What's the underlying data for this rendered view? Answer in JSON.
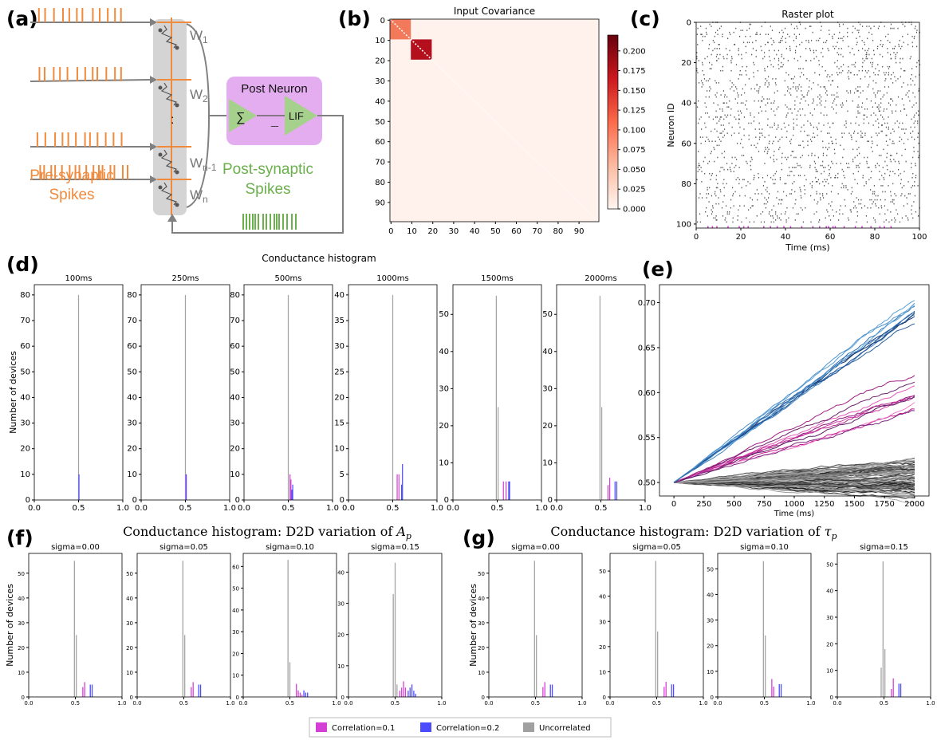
{
  "panel_labels": {
    "a": "(a)",
    "b": "(b)",
    "c": "(c)",
    "d": "(d)",
    "e": "(e)",
    "f": "(f)",
    "g": "(g)"
  },
  "schematic": {
    "weights": [
      "W",
      "W",
      "W",
      "W"
    ],
    "weight_subs": [
      "1",
      "2",
      "n-1",
      "n"
    ],
    "dots": ":",
    "post_neuron": "Post Neuron",
    "sum_symbol": "∑",
    "lif": "LIF",
    "minus": "_",
    "pre_label_1": "Pre-synaptic",
    "pre_label_2": "Spikes",
    "post_label_1": "Post-synaptic",
    "post_label_2": "Spikes",
    "colors": {
      "spike": "#f08a3c",
      "post": "#6ab04c",
      "neuron_box": "#e4adf0",
      "triangle": "#a6d18c",
      "gray_bar": "#d4d4d4"
    }
  },
  "chart_data": [
    {
      "id": "b",
      "type": "heatmap",
      "title": "Input Covariance",
      "x_ticks": [
        "0",
        "10",
        "20",
        "30",
        "40",
        "50",
        "60",
        "70",
        "80",
        "90"
      ],
      "y_ticks": [
        "0",
        "10",
        "20",
        "30",
        "40",
        "50",
        "60",
        "70",
        "80",
        "90"
      ],
      "n": 100,
      "blocks": [
        {
          "start": 0,
          "end": 10,
          "value": 0.1,
          "color": "#f2795a"
        },
        {
          "start": 10,
          "end": 20,
          "value": 0.2,
          "color": "#b30f1d"
        }
      ],
      "background_color": "#fff2ec",
      "colorbar_ticks": [
        "0.000",
        "0.025",
        "0.050",
        "0.075",
        "0.100",
        "0.125",
        "0.150",
        "0.175",
        "0.200"
      ],
      "colorbar_range": [
        0,
        0.22
      ]
    },
    {
      "id": "c",
      "type": "scatter",
      "title": "Raster plot",
      "xlabel": "Time (ms)",
      "ylabel": "Neuron ID",
      "x_ticks": [
        "0",
        "20",
        "40",
        "60",
        "80",
        "100"
      ],
      "y_ticks": [
        "0",
        "20",
        "40",
        "60",
        "80",
        "100"
      ],
      "xlim": [
        0,
        100
      ],
      "ylim": [
        102,
        0
      ],
      "n_neurons": 100,
      "rate": 0.16,
      "post_spike_times": [
        5,
        7,
        9,
        14,
        19,
        21,
        23,
        30,
        33,
        36,
        39,
        42,
        47,
        52,
        55,
        58,
        59,
        61,
        62,
        66,
        71,
        74,
        78,
        82,
        84,
        87
      ],
      "spike_color": "#555555",
      "post_color": "#d63fd6"
    },
    {
      "id": "d",
      "type": "bar",
      "title": "Conductance histogram",
      "ylabel": "Number of devices",
      "x_ticks": [
        "0.0",
        "0.5",
        "1.0"
      ],
      "subplots": [
        {
          "title": "100ms",
          "y_ticks": [
            "0",
            "10",
            "20",
            "30",
            "40",
            "50",
            "60",
            "70",
            "80"
          ],
          "ymax": 84,
          "bars": [
            {
              "x": 0.5,
              "v": 80,
              "c": "gray"
            },
            {
              "x": 0.505,
              "v": 10,
              "c": "blue"
            }
          ]
        },
        {
          "title": "250ms",
          "y_ticks": [
            "0",
            "10",
            "20",
            "30",
            "40",
            "50",
            "60",
            "70",
            "80"
          ],
          "ymax": 84,
          "bars": [
            {
              "x": 0.5,
              "v": 80,
              "c": "gray"
            },
            {
              "x": 0.505,
              "v": 10,
              "c": "magenta"
            },
            {
              "x": 0.51,
              "v": 10,
              "c": "blue"
            }
          ]
        },
        {
          "title": "500ms",
          "y_ticks": [
            "0",
            "10",
            "20",
            "30",
            "40",
            "50",
            "60",
            "70",
            "80"
          ],
          "ymax": 84,
          "bars": [
            {
              "x": 0.5,
              "v": 80,
              "c": "gray"
            },
            {
              "x": 0.52,
              "v": 10,
              "c": "magenta"
            },
            {
              "x": 0.53,
              "v": 8,
              "c": "magenta"
            },
            {
              "x": 0.54,
              "v": 4,
              "c": "blue"
            },
            {
              "x": 0.55,
              "v": 6,
              "c": "blue"
            }
          ]
        },
        {
          "title": "1000ms",
          "y_ticks": [
            "0",
            "5",
            "10",
            "15",
            "20",
            "25",
            "30",
            "35",
            "40"
          ],
          "ymax": 42,
          "bars": [
            {
              "x": 0.5,
              "v": 40,
              "c": "gray"
            },
            {
              "x": 0.55,
              "v": 5,
              "c": "magenta"
            },
            {
              "x": 0.57,
              "v": 5,
              "c": "magenta"
            },
            {
              "x": 0.6,
              "v": 3,
              "c": "blue"
            },
            {
              "x": 0.61,
              "v": 7,
              "c": "blue"
            }
          ]
        },
        {
          "title": "1500ms",
          "y_ticks": [
            "0",
            "10",
            "20",
            "30",
            "40",
            "50"
          ],
          "ymax": 58,
          "bars": [
            {
              "x": 0.49,
              "v": 55,
              "c": "gray"
            },
            {
              "x": 0.51,
              "v": 25,
              "c": "gray"
            },
            {
              "x": 0.57,
              "v": 5,
              "c": "magenta"
            },
            {
              "x": 0.6,
              "v": 5,
              "c": "magenta"
            },
            {
              "x": 0.63,
              "v": 5,
              "c": "blue"
            },
            {
              "x": 0.64,
              "v": 5,
              "c": "blue"
            }
          ]
        },
        {
          "title": "2000ms",
          "y_ticks": [
            "0",
            "10",
            "20",
            "30",
            "40",
            "50"
          ],
          "ymax": 58,
          "bars": [
            {
              "x": 0.49,
              "v": 55,
              "c": "gray"
            },
            {
              "x": 0.51,
              "v": 25,
              "c": "gray"
            },
            {
              "x": 0.58,
              "v": 4,
              "c": "magenta"
            },
            {
              "x": 0.6,
              "v": 6,
              "c": "magenta"
            },
            {
              "x": 0.66,
              "v": 5,
              "c": "blue"
            },
            {
              "x": 0.68,
              "v": 5,
              "c": "blue"
            }
          ]
        }
      ]
    },
    {
      "id": "e",
      "type": "line",
      "xlabel": "Time (ms)",
      "x_ticks": [
        "0",
        "250",
        "500",
        "750",
        "1000",
        "1250",
        "1500",
        "1750",
        "2000"
      ],
      "y_ticks": [
        "0.50",
        "0.55",
        "0.60",
        "0.65",
        "0.70"
      ],
      "xlim": [
        -120,
        2120
      ],
      "ylim": [
        0.485,
        0.72
      ],
      "start": 0.5,
      "groups": [
        {
          "color": "blue",
          "count": 10,
          "end_min": 0.675,
          "end_max": 0.71
        },
        {
          "color": "magenta",
          "count": 10,
          "end_min": 0.59,
          "end_max": 0.615
        },
        {
          "color": "gray",
          "count": 80,
          "end_min": 0.49,
          "end_max": 0.525
        }
      ]
    },
    {
      "id": "f",
      "type": "bar",
      "title_prefix": "Conductance histogram: D2D variation of ",
      "title_var": "A",
      "title_sub": "p",
      "ylabel": "Number of devices",
      "x_ticks": [
        "0.0",
        "0.5",
        "1.0"
      ],
      "subplots": [
        {
          "title": "sigma=0.00",
          "y_ticks": [
            "0",
            "10",
            "20",
            "30",
            "40",
            "50"
          ],
          "ymax": 58,
          "bars": [
            {
              "x": 0.49,
              "v": 55,
              "c": "gray"
            },
            {
              "x": 0.51,
              "v": 25,
              "c": "gray"
            },
            {
              "x": 0.58,
              "v": 4,
              "c": "magenta"
            },
            {
              "x": 0.6,
              "v": 6,
              "c": "magenta"
            },
            {
              "x": 0.66,
              "v": 5,
              "c": "blue"
            },
            {
              "x": 0.68,
              "v": 5,
              "c": "blue"
            }
          ]
        },
        {
          "title": "sigma=0.05",
          "y_ticks": [
            "0",
            "10",
            "20",
            "30",
            "40",
            "50"
          ],
          "ymax": 58,
          "bars": [
            {
              "x": 0.49,
              "v": 55,
              "c": "gray"
            },
            {
              "x": 0.51,
              "v": 25,
              "c": "gray"
            },
            {
              "x": 0.58,
              "v": 4,
              "c": "magenta"
            },
            {
              "x": 0.6,
              "v": 6,
              "c": "magenta"
            },
            {
              "x": 0.66,
              "v": 5,
              "c": "blue"
            },
            {
              "x": 0.68,
              "v": 5,
              "c": "blue"
            }
          ]
        },
        {
          "title": "sigma=0.10",
          "y_ticks": [
            "0",
            "10",
            "20",
            "30",
            "40",
            "50",
            "60"
          ],
          "ymax": 66,
          "bars": [
            {
              "x": 0.48,
              "v": 63,
              "c": "gray"
            },
            {
              "x": 0.5,
              "v": 16,
              "c": "gray"
            },
            {
              "x": 0.57,
              "v": 6,
              "c": "magenta"
            },
            {
              "x": 0.59,
              "v": 3,
              "c": "magenta"
            },
            {
              "x": 0.61,
              "v": 2,
              "c": "magenta"
            },
            {
              "x": 0.63,
              "v": 1,
              "c": "magenta"
            },
            {
              "x": 0.65,
              "v": 3,
              "c": "blue"
            },
            {
              "x": 0.67,
              "v": 2,
              "c": "blue"
            },
            {
              "x": 0.69,
              "v": 2,
              "c": "blue"
            }
          ]
        },
        {
          "title": "sigma=0.15",
          "y_ticks": [
            "0",
            "10",
            "20",
            "30",
            "40"
          ],
          "ymax": 46,
          "bars": [
            {
              "x": 0.48,
              "v": 33,
              "c": "gray"
            },
            {
              "x": 0.5,
              "v": 43,
              "c": "gray"
            },
            {
              "x": 0.52,
              "v": 4,
              "c": "gray"
            },
            {
              "x": 0.55,
              "v": 2,
              "c": "magenta"
            },
            {
              "x": 0.57,
              "v": 3,
              "c": "magenta"
            },
            {
              "x": 0.59,
              "v": 5,
              "c": "magenta"
            },
            {
              "x": 0.61,
              "v": 3,
              "c": "magenta"
            },
            {
              "x": 0.64,
              "v": 2,
              "c": "blue"
            },
            {
              "x": 0.66,
              "v": 3,
              "c": "blue"
            },
            {
              "x": 0.68,
              "v": 4,
              "c": "blue"
            },
            {
              "x": 0.7,
              "v": 2,
              "c": "blue"
            },
            {
              "x": 0.72,
              "v": 1,
              "c": "blue"
            }
          ]
        }
      ]
    },
    {
      "id": "g",
      "type": "bar",
      "title_prefix": "Conductance histogram: D2D variation of ",
      "title_var": "τ",
      "title_sub": "p",
      "ylabel": "Number of devices",
      "x_ticks": [
        "0.0",
        "0.5",
        "1.0"
      ],
      "subplots": [
        {
          "title": "sigma=0.00",
          "y_ticks": [
            "0",
            "10",
            "20",
            "30",
            "40",
            "50"
          ],
          "ymax": 58,
          "bars": [
            {
              "x": 0.49,
              "v": 55,
              "c": "gray"
            },
            {
              "x": 0.51,
              "v": 25,
              "c": "gray"
            },
            {
              "x": 0.58,
              "v": 4,
              "c": "magenta"
            },
            {
              "x": 0.6,
              "v": 6,
              "c": "magenta"
            },
            {
              "x": 0.66,
              "v": 5,
              "c": "blue"
            },
            {
              "x": 0.68,
              "v": 5,
              "c": "blue"
            }
          ]
        },
        {
          "title": "sigma=0.05",
          "y_ticks": [
            "0",
            "10",
            "20",
            "30",
            "40",
            "50"
          ],
          "ymax": 57,
          "bars": [
            {
              "x": 0.49,
              "v": 54,
              "c": "gray"
            },
            {
              "x": 0.51,
              "v": 26,
              "c": "gray"
            },
            {
              "x": 0.58,
              "v": 4,
              "c": "magenta"
            },
            {
              "x": 0.6,
              "v": 6,
              "c": "magenta"
            },
            {
              "x": 0.66,
              "v": 5,
              "c": "blue"
            },
            {
              "x": 0.68,
              "v": 5,
              "c": "blue"
            }
          ]
        },
        {
          "title": "sigma=0.10",
          "y_ticks": [
            "0",
            "10",
            "20",
            "30",
            "40",
            "50"
          ],
          "ymax": 56,
          "bars": [
            {
              "x": 0.49,
              "v": 53,
              "c": "gray"
            },
            {
              "x": 0.51,
              "v": 24,
              "c": "gray"
            },
            {
              "x": 0.58,
              "v": 7,
              "c": "magenta"
            },
            {
              "x": 0.6,
              "v": 4,
              "c": "magenta"
            },
            {
              "x": 0.66,
              "v": 5,
              "c": "blue"
            },
            {
              "x": 0.68,
              "v": 5,
              "c": "blue"
            }
          ]
        },
        {
          "title": "sigma=0.15",
          "y_ticks": [
            "0",
            "10",
            "20",
            "30",
            "40",
            "50"
          ],
          "ymax": 54,
          "bars": [
            {
              "x": 0.47,
              "v": 11,
              "c": "gray"
            },
            {
              "x": 0.49,
              "v": 51,
              "c": "gray"
            },
            {
              "x": 0.51,
              "v": 18,
              "c": "gray"
            },
            {
              "x": 0.58,
              "v": 3,
              "c": "magenta"
            },
            {
              "x": 0.6,
              "v": 7,
              "c": "magenta"
            },
            {
              "x": 0.66,
              "v": 5,
              "c": "blue"
            },
            {
              "x": 0.68,
              "v": 5,
              "c": "blue"
            }
          ]
        }
      ]
    }
  ],
  "legend": {
    "items": [
      {
        "label": "Correlation=0.1",
        "color": "#d63fd6"
      },
      {
        "label": "Correlation=0.2",
        "color": "#4b4bff"
      },
      {
        "label": "Uncorrelated",
        "color": "#a0a0a0"
      }
    ]
  },
  "colors": {
    "magenta": "#d63fd6",
    "blue": "#4b4bff",
    "gray": "#a3a3a3"
  }
}
